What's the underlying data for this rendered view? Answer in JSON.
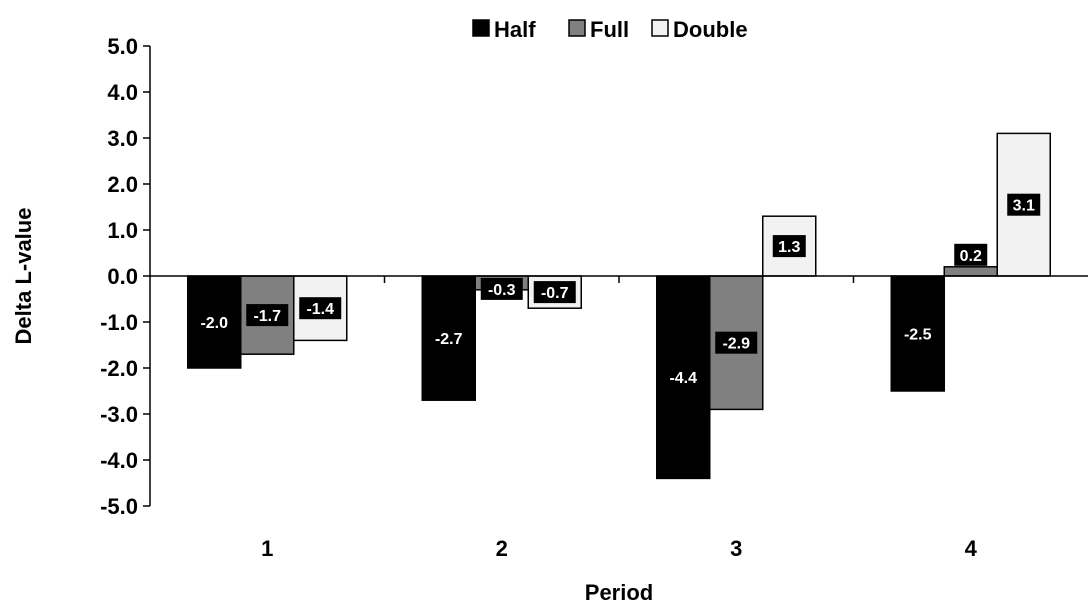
{
  "chart_data": {
    "type": "bar",
    "categories": [
      "1",
      "2",
      "3",
      "4"
    ],
    "series": [
      {
        "name": "Half",
        "color": "#000000",
        "values": [
          -2.0,
          -2.7,
          -4.4,
          -2.5
        ],
        "labels": [
          "-2.0",
          "-2.7",
          "-4.4",
          "-2.5"
        ]
      },
      {
        "name": "Full",
        "color": "#808080",
        "values": [
          -1.7,
          -0.3,
          -2.9,
          0.2
        ],
        "labels": [
          "-1.7",
          "-0.3",
          "-2.9",
          "0.2"
        ]
      },
      {
        "name": "Double",
        "color": "#f2f2f2",
        "values": [
          -1.4,
          -0.7,
          1.3,
          3.1
        ],
        "labels": [
          "-1.4",
          "-0.7",
          "1.3",
          "3.1"
        ]
      }
    ],
    "title": "",
    "xlabel": "Period",
    "ylabel": "Delta L-value",
    "ylim": [
      -5.0,
      5.0
    ],
    "yticks": [
      "5.0",
      "4.0",
      "3.0",
      "2.0",
      "1.0",
      "0.0",
      "-1.0",
      "-2.0",
      "-3.0",
      "-4.0",
      "-5.0"
    ],
    "grid": false,
    "legend_position": "top"
  }
}
